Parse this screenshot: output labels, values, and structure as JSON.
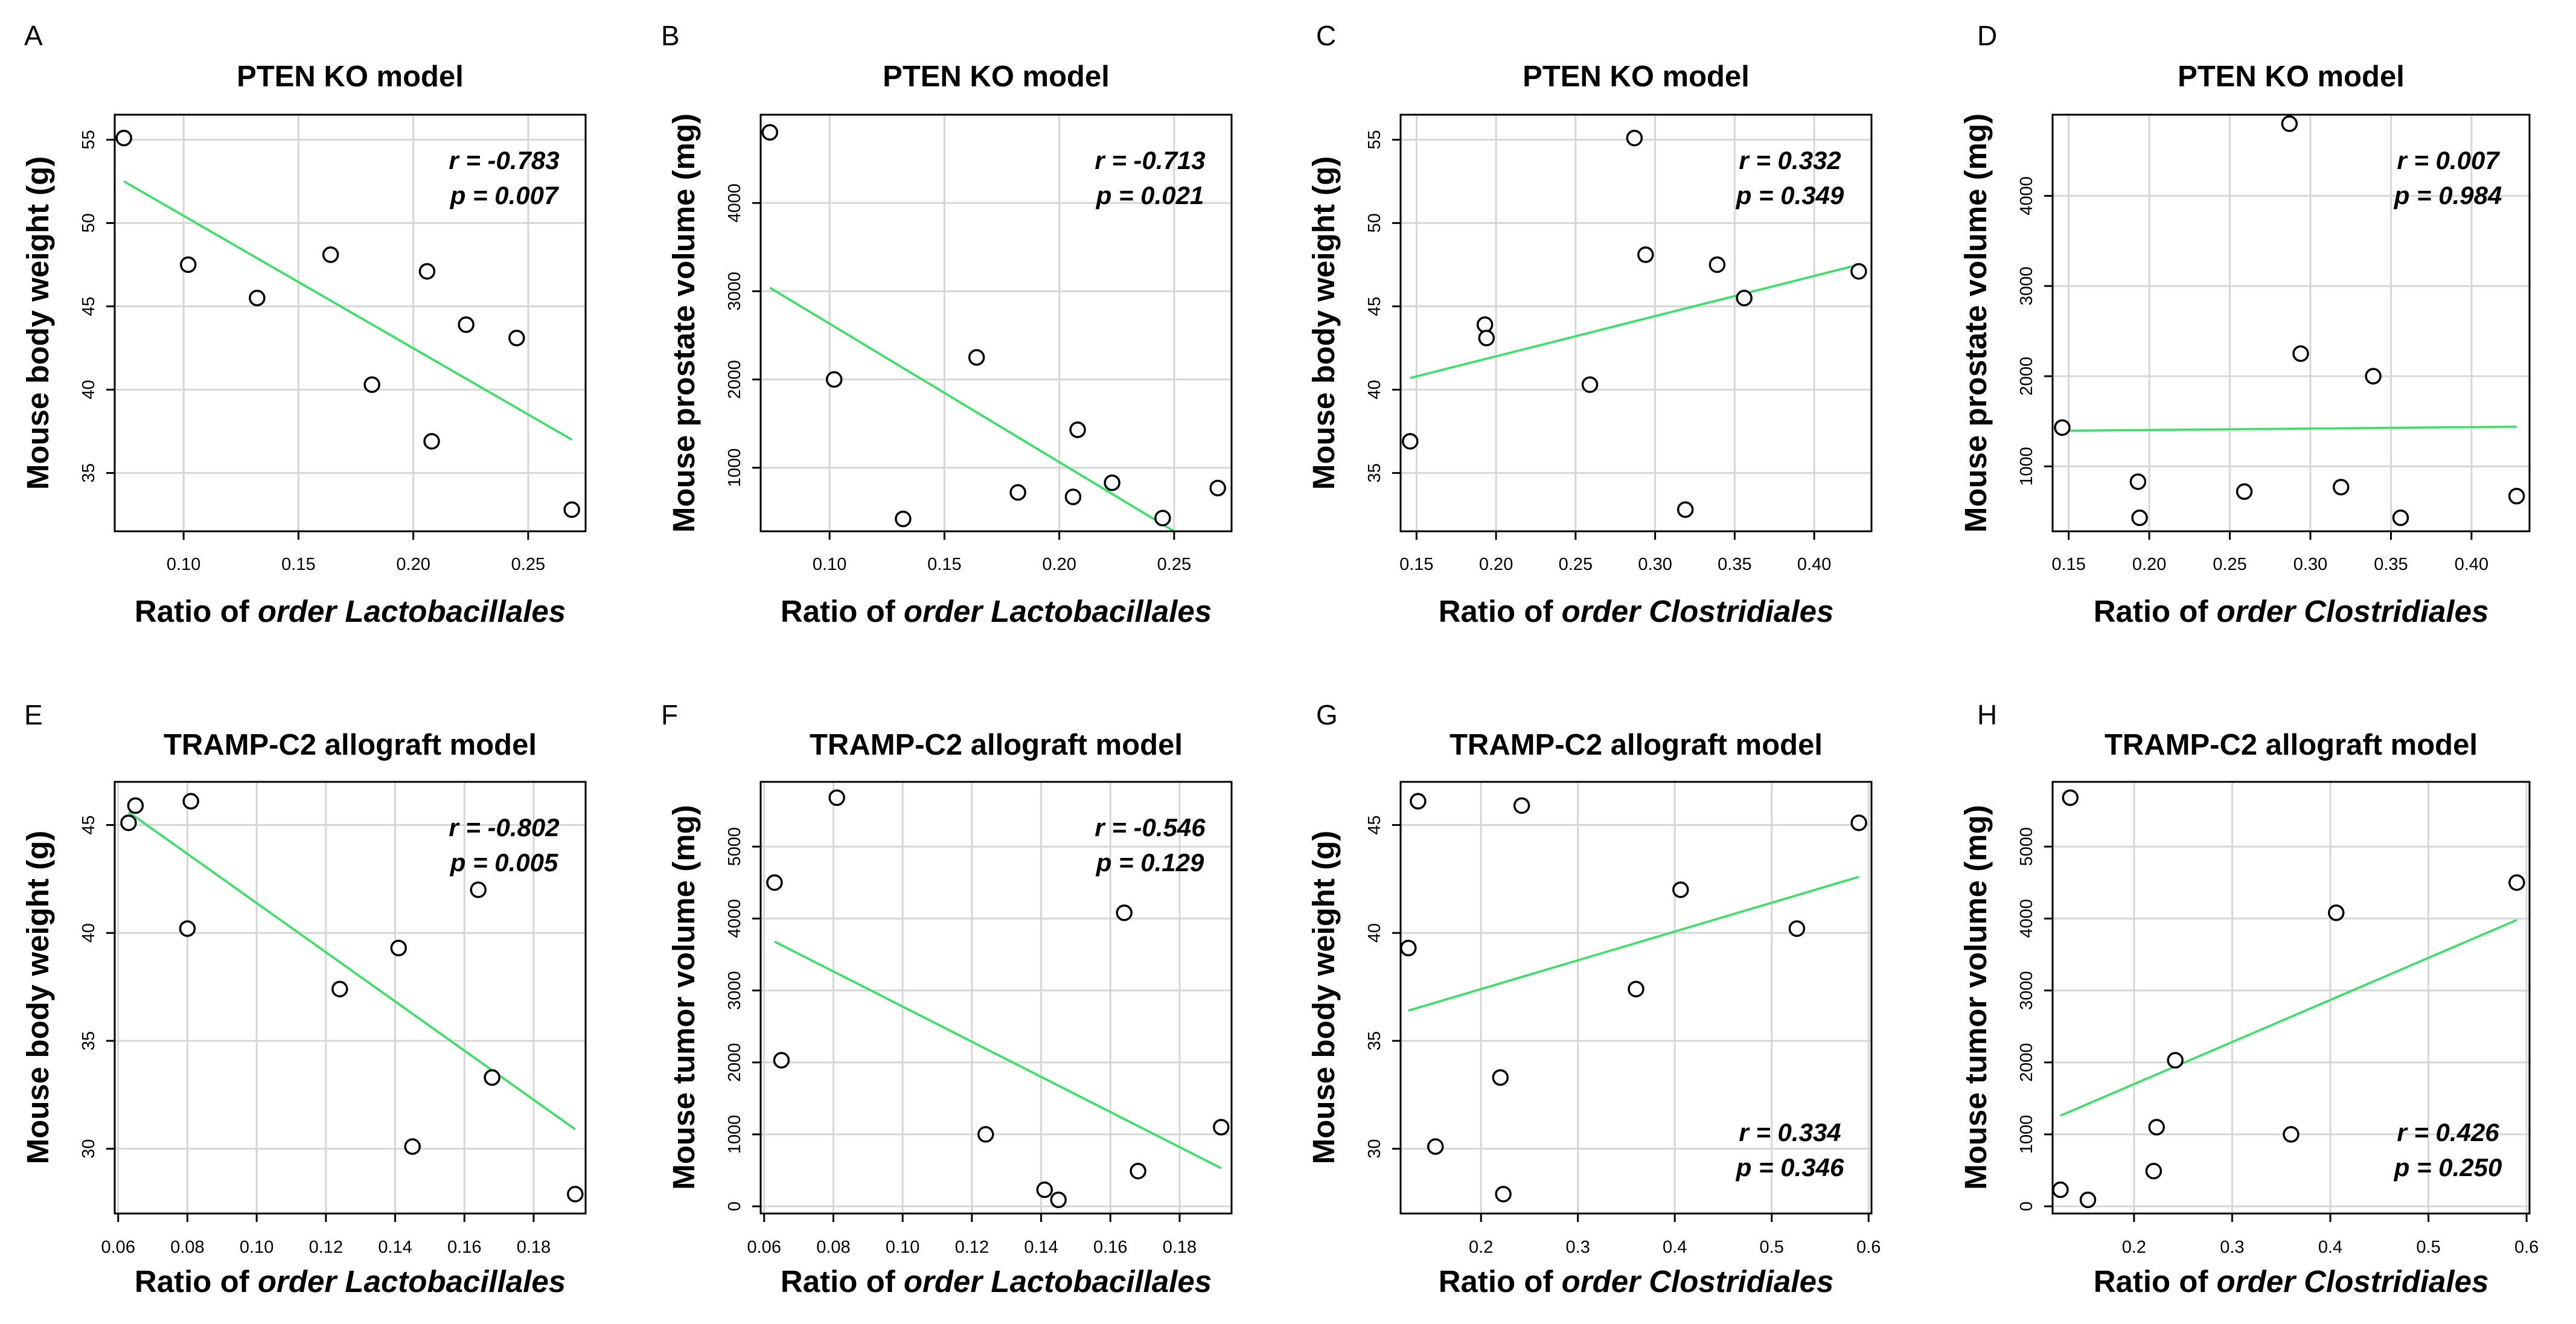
{
  "colors": {
    "fit_line": "#2ee65c",
    "grid": "#d6d6d6",
    "points": "#000000",
    "background": "#ffffff"
  },
  "chart_data": [
    {
      "panel": "A",
      "type": "scatter",
      "title": "PTEN KO model",
      "xlabel_prefix": "Ratio of ",
      "xlabel_italic": "order Lactobacillales",
      "ylabel": "Mouse body weight (g)",
      "xlim": [
        0.07,
        0.275
      ],
      "ylim": [
        31.5,
        56.5
      ],
      "xticks": [
        0.1,
        0.15,
        0.2,
        0.25
      ],
      "xtick_labels": [
        "0.10",
        "0.15",
        "0.20",
        "0.25"
      ],
      "yticks": [
        35,
        40,
        45,
        50,
        55
      ],
      "ytick_labels": [
        "35",
        "40",
        "45",
        "50",
        "55"
      ],
      "points": [
        [
          0.074,
          55.1
        ],
        [
          0.102,
          47.5
        ],
        [
          0.132,
          45.5
        ],
        [
          0.164,
          48.1
        ],
        [
          0.182,
          40.3
        ],
        [
          0.206,
          47.1
        ],
        [
          0.208,
          36.9
        ],
        [
          0.223,
          43.9
        ],
        [
          0.245,
          43.1
        ],
        [
          0.269,
          32.8
        ]
      ],
      "fit_line": {
        "x": [
          0.074,
          0.269
        ],
        "y": [
          52.5,
          37.0
        ]
      },
      "stat_r": "r = -0.783",
      "stat_p": "p = 0.007",
      "stat_position": "top-right"
    },
    {
      "panel": "B",
      "type": "scatter",
      "title": "PTEN KO model",
      "xlabel_prefix": "Ratio of ",
      "xlabel_italic": "order Lactobacillales",
      "ylabel": "Mouse prostate volume (mg)",
      "xlim": [
        0.07,
        0.275
      ],
      "ylim": [
        280,
        5000
      ],
      "xticks": [
        0.1,
        0.15,
        0.2,
        0.25
      ],
      "xtick_labels": [
        "0.10",
        "0.15",
        "0.20",
        "0.25"
      ],
      "yticks": [
        1000,
        2000,
        3000,
        4000
      ],
      "ytick_labels": [
        "1000",
        "2000",
        "3000",
        "4000"
      ],
      "points": [
        [
          0.074,
          4800
        ],
        [
          0.102,
          2000
        ],
        [
          0.132,
          420
        ],
        [
          0.164,
          2250
        ],
        [
          0.182,
          720
        ],
        [
          0.206,
          670
        ],
        [
          0.208,
          1430
        ],
        [
          0.223,
          830
        ],
        [
          0.245,
          430
        ],
        [
          0.269,
          770
        ]
      ],
      "fit_line": {
        "x": [
          0.074,
          0.25
        ],
        "y": [
          3040,
          280
        ]
      },
      "stat_r": "r = -0.713",
      "stat_p": "p = 0.021",
      "stat_position": "top-right"
    },
    {
      "panel": "C",
      "type": "scatter",
      "title": "PTEN KO model",
      "xlabel_prefix": "Ratio of ",
      "xlabel_italic": "order Clostridiales",
      "ylabel": "Mouse body weight (g)",
      "xlim": [
        0.14,
        0.436
      ],
      "ylim": [
        31.5,
        56.5
      ],
      "xticks": [
        0.15,
        0.2,
        0.25,
        0.3,
        0.35,
        0.4
      ],
      "xtick_labels": [
        "0.15",
        "0.20",
        "0.25",
        "0.30",
        "0.35",
        "0.40"
      ],
      "yticks": [
        35,
        40,
        45,
        50,
        55
      ],
      "ytick_labels": [
        "35",
        "40",
        "45",
        "50",
        "55"
      ],
      "points": [
        [
          0.146,
          36.9
        ],
        [
          0.193,
          43.9
        ],
        [
          0.194,
          43.1
        ],
        [
          0.259,
          40.3
        ],
        [
          0.287,
          55.1
        ],
        [
          0.294,
          48.1
        ],
        [
          0.319,
          32.8
        ],
        [
          0.339,
          47.5
        ],
        [
          0.356,
          45.5
        ],
        [
          0.428,
          47.1
        ]
      ],
      "fit_line": {
        "x": [
          0.146,
          0.428
        ],
        "y": [
          40.7,
          47.5
        ]
      },
      "stat_r": "r = 0.332",
      "stat_p": "p = 0.349",
      "stat_position": "top-right"
    },
    {
      "panel": "D",
      "type": "scatter",
      "title": "PTEN KO model",
      "xlabel_prefix": "Ratio of ",
      "xlabel_italic": "order Clostridiales",
      "ylabel": "Mouse prostate volume (mg)",
      "xlim": [
        0.14,
        0.436
      ],
      "ylim": [
        280,
        4900
      ],
      "xticks": [
        0.15,
        0.2,
        0.25,
        0.3,
        0.35,
        0.4
      ],
      "xtick_labels": [
        "0.15",
        "0.20",
        "0.25",
        "0.30",
        "0.35",
        "0.40"
      ],
      "yticks": [
        1000,
        2000,
        3000,
        4000
      ],
      "ytick_labels": [
        "1000",
        "2000",
        "3000",
        "4000"
      ],
      "points": [
        [
          0.146,
          1430
        ],
        [
          0.193,
          830
        ],
        [
          0.194,
          430
        ],
        [
          0.259,
          720
        ],
        [
          0.287,
          4800
        ],
        [
          0.294,
          2250
        ],
        [
          0.319,
          770
        ],
        [
          0.339,
          2000
        ],
        [
          0.356,
          430
        ],
        [
          0.428,
          670
        ]
      ],
      "fit_line": {
        "x": [
          0.146,
          0.428
        ],
        "y": [
          1395,
          1440
        ]
      },
      "stat_r": "r = 0.007",
      "stat_p": "p = 0.984",
      "stat_position": "top-right"
    },
    {
      "panel": "E",
      "type": "scatter",
      "title": "TRAMP-C2 allograft model",
      "xlabel_prefix": "Ratio of ",
      "xlabel_italic": "order Lactobacillales",
      "ylabel": "Mouse body weight (g)",
      "xlim": [
        0.059,
        0.195
      ],
      "ylim": [
        27,
        47
      ],
      "xticks": [
        0.06,
        0.08,
        0.1,
        0.12,
        0.14,
        0.16,
        0.18
      ],
      "xtick_labels": [
        "0.06",
        "0.08",
        "0.10",
        "0.12",
        "0.14",
        "0.16",
        "0.18"
      ],
      "yticks": [
        30,
        35,
        40,
        45
      ],
      "ytick_labels": [
        "30",
        "35",
        "40",
        "45"
      ],
      "points": [
        [
          0.063,
          45.1
        ],
        [
          0.065,
          45.9
        ],
        [
          0.08,
          40.2
        ],
        [
          0.081,
          46.1
        ],
        [
          0.124,
          37.4
        ],
        [
          0.141,
          39.3
        ],
        [
          0.145,
          30.1
        ],
        [
          0.164,
          42.0
        ],
        [
          0.168,
          33.3
        ],
        [
          0.192,
          27.9
        ]
      ],
      "fit_line": {
        "x": [
          0.063,
          0.192
        ],
        "y": [
          45.6,
          30.9
        ]
      },
      "stat_r": "r = -0.802",
      "stat_p": "p = 0.005",
      "stat_position": "top-right"
    },
    {
      "panel": "F",
      "type": "scatter",
      "title": "TRAMP-C2 allograft model",
      "xlabel_prefix": "Ratio of ",
      "xlabel_italic": "order Lactobacillales",
      "ylabel": "Mouse tumor volume (mg)",
      "xlim": [
        0.059,
        0.195
      ],
      "ylim": [
        -100,
        5900
      ],
      "xticks": [
        0.06,
        0.08,
        0.1,
        0.12,
        0.14,
        0.16,
        0.18
      ],
      "xtick_labels": [
        "0.06",
        "0.08",
        "0.10",
        "0.12",
        "0.14",
        "0.16",
        "0.18"
      ],
      "yticks": [
        0,
        1000,
        2000,
        3000,
        4000,
        5000
      ],
      "ytick_labels": [
        "0",
        "1000",
        "2000",
        "3000",
        "4000",
        "5000"
      ],
      "points": [
        [
          0.063,
          4500
        ],
        [
          0.065,
          2030
        ],
        [
          0.081,
          5680
        ],
        [
          0.124,
          1000
        ],
        [
          0.141,
          230
        ],
        [
          0.145,
          90
        ],
        [
          0.164,
          4080
        ],
        [
          0.168,
          490
        ],
        [
          0.192,
          1100
        ]
      ],
      "fit_line": {
        "x": [
          0.063,
          0.192
        ],
        "y": [
          3680,
          530
        ]
      },
      "stat_r": "r = -0.546",
      "stat_p": "p = 0.129",
      "stat_position": "top-right"
    },
    {
      "panel": "G",
      "type": "scatter",
      "title": "TRAMP-C2 allograft model",
      "xlabel_prefix": "Ratio of ",
      "xlabel_italic": "order Clostridiales",
      "ylabel": "Mouse body weight (g)",
      "xlim": [
        0.117,
        0.603
      ],
      "ylim": [
        27,
        47
      ],
      "xticks": [
        0.2,
        0.3,
        0.4,
        0.5,
        0.6
      ],
      "xtick_labels": [
        "0.2",
        "0.3",
        "0.4",
        "0.5",
        "0.6"
      ],
      "yticks": [
        30,
        35,
        40,
        45
      ],
      "ytick_labels": [
        "30",
        "35",
        "40",
        "45"
      ],
      "points": [
        [
          0.125,
          39.3
        ],
        [
          0.135,
          46.1
        ],
        [
          0.153,
          30.1
        ],
        [
          0.22,
          33.3
        ],
        [
          0.223,
          27.9
        ],
        [
          0.242,
          45.9
        ],
        [
          0.36,
          37.4
        ],
        [
          0.406,
          42.0
        ],
        [
          0.526,
          40.2
        ],
        [
          0.59,
          45.1
        ]
      ],
      "fit_line": {
        "x": [
          0.125,
          0.59
        ],
        "y": [
          36.4,
          42.6
        ]
      },
      "stat_r": "r = 0.334",
      "stat_p": "p = 0.346",
      "stat_position": "bottom-right"
    },
    {
      "panel": "H",
      "type": "scatter",
      "title": "TRAMP-C2 allograft model",
      "xlabel_prefix": "Ratio of ",
      "xlabel_italic": "order Clostridiales",
      "ylabel": "Mouse tumor volume (mg)",
      "xlim": [
        0.117,
        0.603
      ],
      "ylim": [
        -100,
        5900
      ],
      "xticks": [
        0.2,
        0.3,
        0.4,
        0.5,
        0.6
      ],
      "xtick_labels": [
        "0.2",
        "0.3",
        "0.4",
        "0.5",
        "0.6"
      ],
      "yticks": [
        0,
        1000,
        2000,
        3000,
        4000,
        5000
      ],
      "ytick_labels": [
        "0",
        "1000",
        "2000",
        "3000",
        "4000",
        "5000"
      ],
      "points": [
        [
          0.125,
          230
        ],
        [
          0.135,
          5680
        ],
        [
          0.153,
          90
        ],
        [
          0.22,
          490
        ],
        [
          0.223,
          1100
        ],
        [
          0.242,
          2030
        ],
        [
          0.36,
          1000
        ],
        [
          0.406,
          4080
        ],
        [
          0.59,
          4500
        ]
      ],
      "fit_line": {
        "x": [
          0.125,
          0.59
        ],
        "y": [
          1260,
          3980
        ]
      },
      "stat_r": "r = 0.426",
      "stat_p": "p = 0.250",
      "stat_position": "bottom-right"
    }
  ]
}
